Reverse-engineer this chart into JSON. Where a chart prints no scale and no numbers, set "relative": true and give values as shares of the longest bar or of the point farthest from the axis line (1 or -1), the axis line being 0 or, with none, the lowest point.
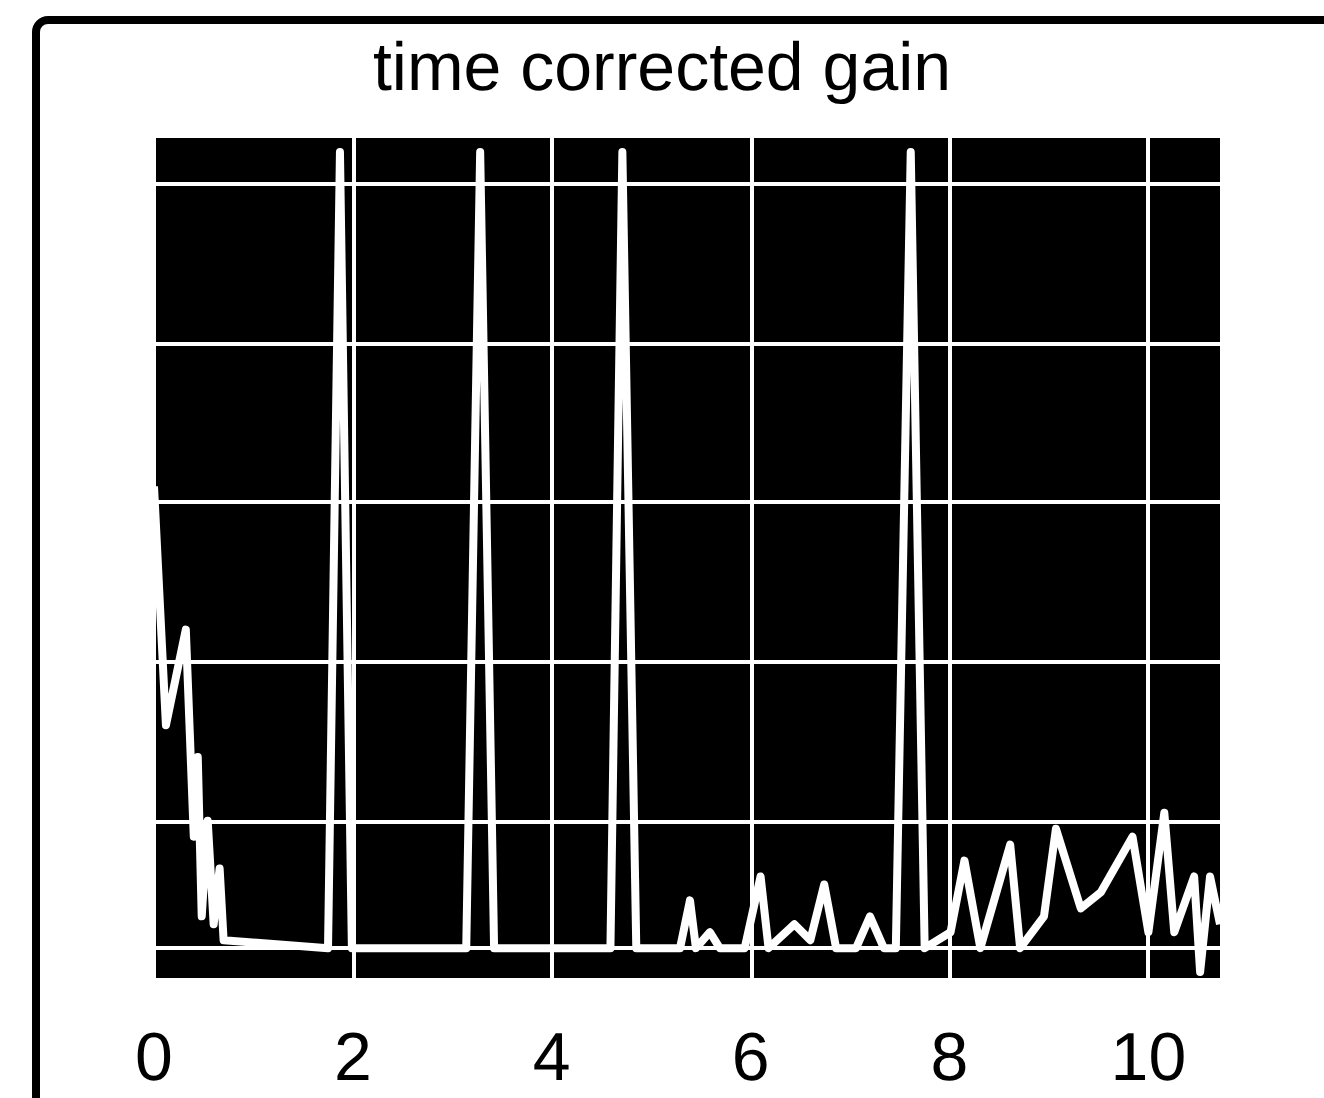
{
  "chart_data": {
    "type": "line",
    "title": "time corrected gain",
    "relative": true,
    "grid": true,
    "marker": "none",
    "line_style": "solid",
    "x": [
      0,
      0.12,
      0.32,
      0.4,
      0.44,
      0.48,
      0.54,
      0.6,
      0.66,
      0.7,
      1.75,
      1.87,
      1.99,
      3.14,
      3.28,
      3.42,
      4.59,
      4.71,
      4.85,
      5.29,
      5.39,
      5.45,
      5.59,
      5.69,
      5.94,
      6.1,
      6.18,
      6.44,
      6.6,
      6.74,
      6.86,
      7.06,
      7.2,
      7.34,
      7.46,
      7.61,
      7.75,
      8.01,
      8.15,
      8.31,
      8.61,
      8.71,
      8.95,
      9.07,
      9.32,
      9.52,
      9.84,
      10.0,
      10.16,
      10.26,
      10.46,
      10.52,
      10.62,
      10.72
    ],
    "series": [
      {
        "color": "#ffffff",
        "values": [
          0.58,
          0.28,
          0.4,
          0.14,
          0.24,
          0.04,
          0.16,
          0.03,
          0.1,
          0.01,
          0,
          1,
          0,
          0,
          1,
          0,
          0,
          1,
          0,
          0,
          0.06,
          0,
          0.02,
          0,
          0,
          0.09,
          0,
          0.03,
          0.01,
          0.08,
          0,
          0,
          0.04,
          0,
          0,
          1,
          0,
          0.02,
          0.11,
          0,
          0.13,
          0,
          0.04,
          0.15,
          0.05,
          0.07,
          0.14,
          0.02,
          0.17,
          0.02,
          0.09,
          -0.03,
          0.09,
          0.03
        ]
      }
    ],
    "xlim": [
      0,
      10.72
    ],
    "xticks": [
      0,
      2,
      4,
      6,
      8,
      10
    ]
  }
}
